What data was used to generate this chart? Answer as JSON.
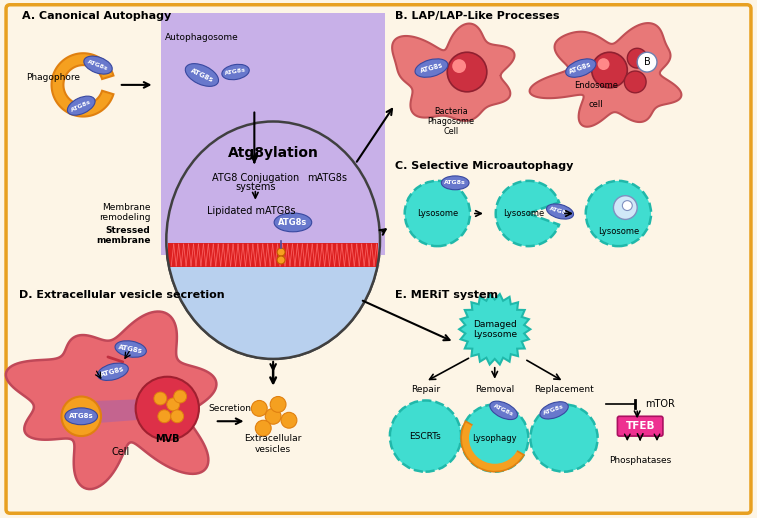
{
  "bg_color": "#fdf5e6",
  "border_color": "#e8a020",
  "title_A": "A. Canonical Autophagy",
  "title_B": "B. LAP/LAP-Like Processes",
  "title_C": "C. Selective Microautophagy",
  "title_D": "D. Extracellular vesicle secretion",
  "title_E": "E. MERiT system",
  "center_title": "Atg8ylation",
  "center_line1": "ATG8 Conjugation",
  "center_line2": "systems",
  "center_line3": "Lipidated mATG8s",
  "center_label": "mATG8s",
  "mem_remodel": "Membrane\nremodeling",
  "stressed": "Stressed\nmembrane",
  "atg8s_label": "ATG8s",
  "phagophore_label": "Phagophore",
  "autophagosome_label": "Autophagosome",
  "lysosome_label": "Lysosome",
  "bacteria_label": "Bacteria\nPhagosome\nCell",
  "endosome_label": "Endosome",
  "cell_label": "cell",
  "repair_label": "Repair",
  "removal_label": "Removal",
  "replacement_label": "Replacement",
  "escrts_label": "ESCRTs",
  "lysophagy_label": "Lysophagy",
  "phosphatases_label": "Phosphatases",
  "damaged_label": "Damaged\nLysosome",
  "secretion_label": "Secretion",
  "extravesicles_label": "Extracellular\nvesicles",
  "mvb_label": "MVB",
  "cell2_label": "Cell",
  "mtor_label": "mTOR",
  "tfeb_label": "TFEB",
  "color_orange": "#f5a020",
  "color_orange_dark": "#e08010",
  "color_atg8s_fill": "#6878cc",
  "color_atg8s_edge": "#3848a0",
  "color_red_cell": "#e86070",
  "color_red_dark": "#b83040",
  "color_red_sphere": "#cc3044",
  "color_cyan": "#40ddd0",
  "color_cyan_edge": "#20b8aa",
  "color_center_purple": "#c8b0e8",
  "color_center_blue": "#b8d0ee",
  "color_membrane_red": "#e03030",
  "color_magenta": "#ee3090",
  "color_purple_mvb": "#9060d0",
  "bg_color_inner": "#fdf5e6"
}
